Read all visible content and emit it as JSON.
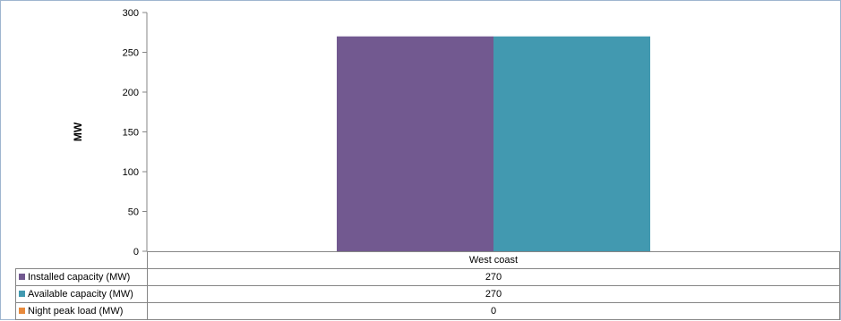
{
  "chart_data": {
    "type": "bar",
    "categories": [
      "West coast"
    ],
    "series": [
      {
        "name": "Installed capacity (MW)",
        "values": [
          270
        ],
        "color": "#725990"
      },
      {
        "name": "Available capacity (MW)",
        "values": [
          270
        ],
        "color": "#4299b0"
      },
      {
        "name": "Night peak load (MW)",
        "values": [
          0
        ],
        "color": "#e88a3c"
      }
    ],
    "ylabel": "MW",
    "xlabel": "",
    "ylim": [
      0,
      300
    ],
    "yticks": [
      0,
      50,
      100,
      150,
      200,
      250,
      300
    ],
    "grid": false,
    "legend": "data-table"
  }
}
